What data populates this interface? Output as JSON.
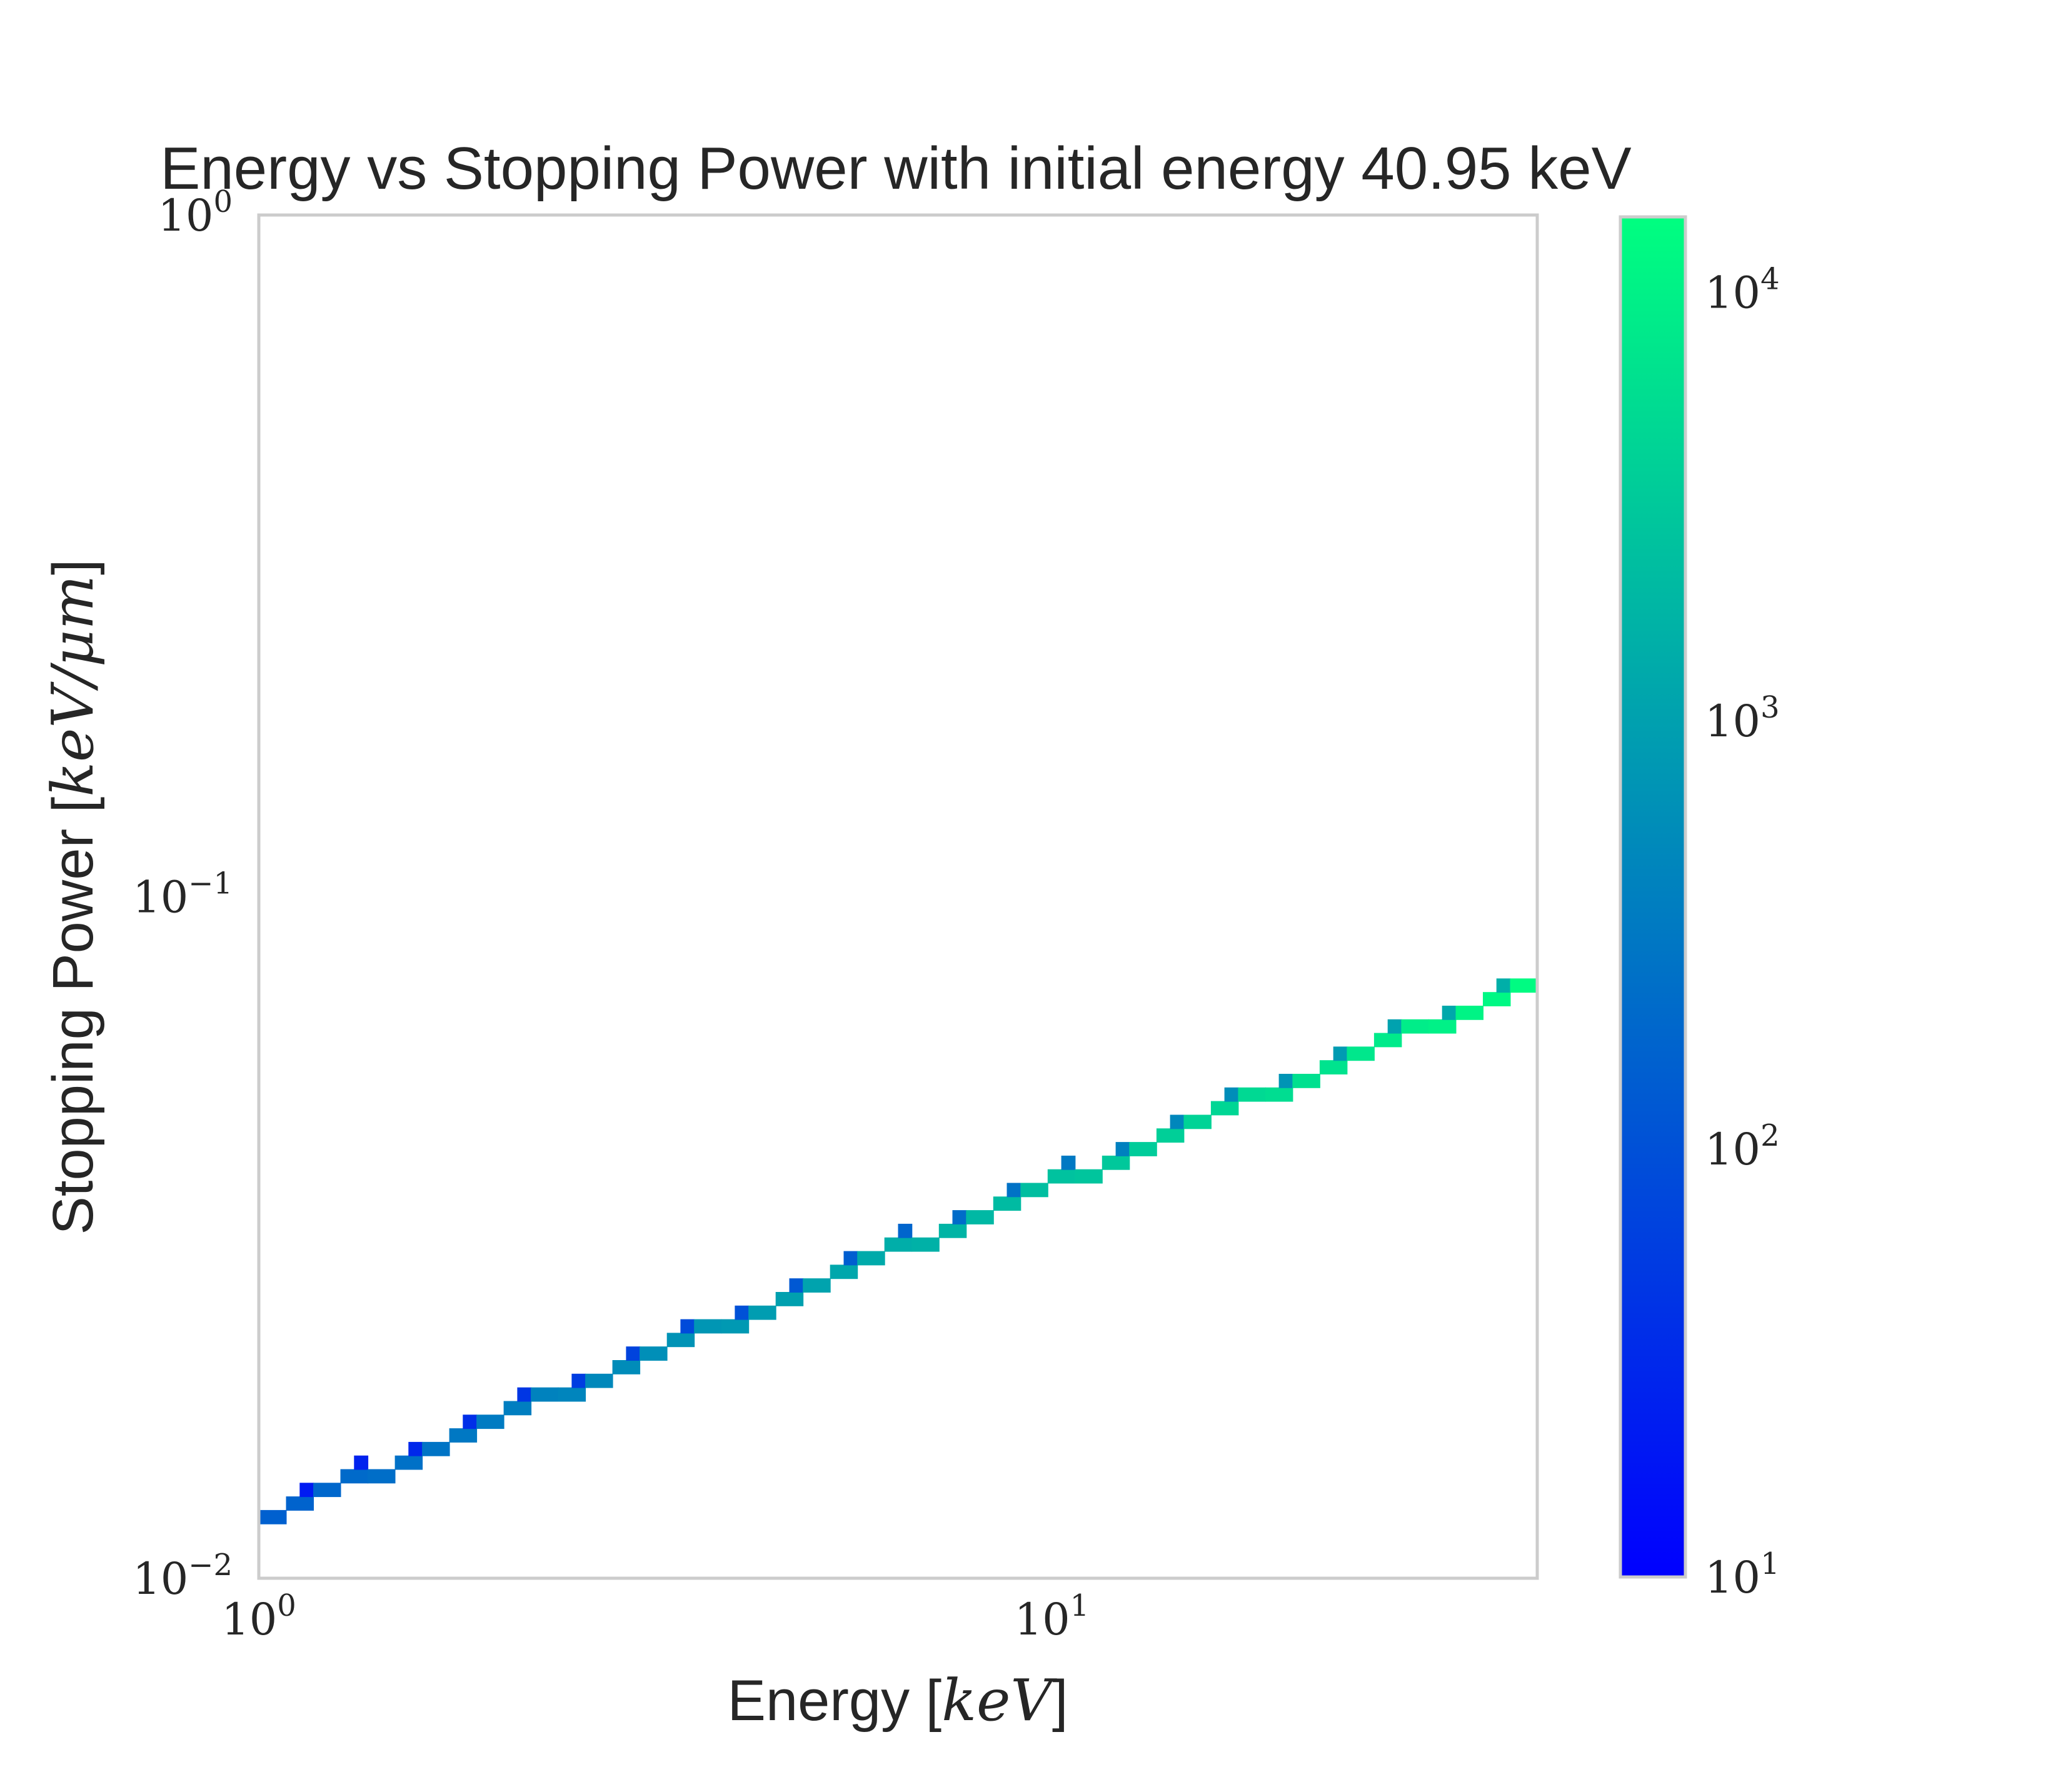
{
  "chart_data": {
    "type": "heatmap",
    "title": "Energy vs Stopping Power with initial energy 40.95 keV",
    "xlabel": {
      "prefix": "Energy [",
      "unit": "keV",
      "suffix": "]"
    },
    "ylabel": {
      "prefix": "Stopping Power [",
      "unit": "keV/μm",
      "suffix": "]"
    },
    "x_scale": "log",
    "y_scale": "log",
    "xlim": [
      1,
      40.95
    ],
    "ylim": [
      0.01,
      1
    ],
    "x_ticks": [
      {
        "value": 1,
        "base": "10",
        "exp": "0"
      },
      {
        "value": 10,
        "base": "10",
        "exp": "1"
      }
    ],
    "y_ticks": [
      {
        "value": 0.01,
        "base": "10",
        "exp": "−2"
      },
      {
        "value": 0.1,
        "base": "10",
        "exp": "−1"
      },
      {
        "value": 1,
        "base": "10",
        "exp": "0"
      }
    ],
    "colorbar": {
      "scale": "log",
      "range": [
        10,
        15000
      ],
      "ticks": [
        {
          "value": 10,
          "base": "10",
          "exp": "1"
        },
        {
          "value": 100,
          "base": "10",
          "exp": "2"
        },
        {
          "value": 1000,
          "base": "10",
          "exp": "3"
        },
        {
          "value": 10000,
          "base": "10",
          "exp": "4"
        }
      ],
      "colormap": "winter",
      "color_low": "#0000ff",
      "color_high": "#00ff80"
    },
    "grid": false,
    "trend": {
      "description": "narrow band of histogram bins; stopping power rises with energy",
      "start": {
        "energy": 1.0,
        "stopping_power": 0.0121
      },
      "end": {
        "energy": 40.95,
        "stopping_power": 0.0755
      },
      "count_start": 150,
      "count_end": 14000
    }
  }
}
